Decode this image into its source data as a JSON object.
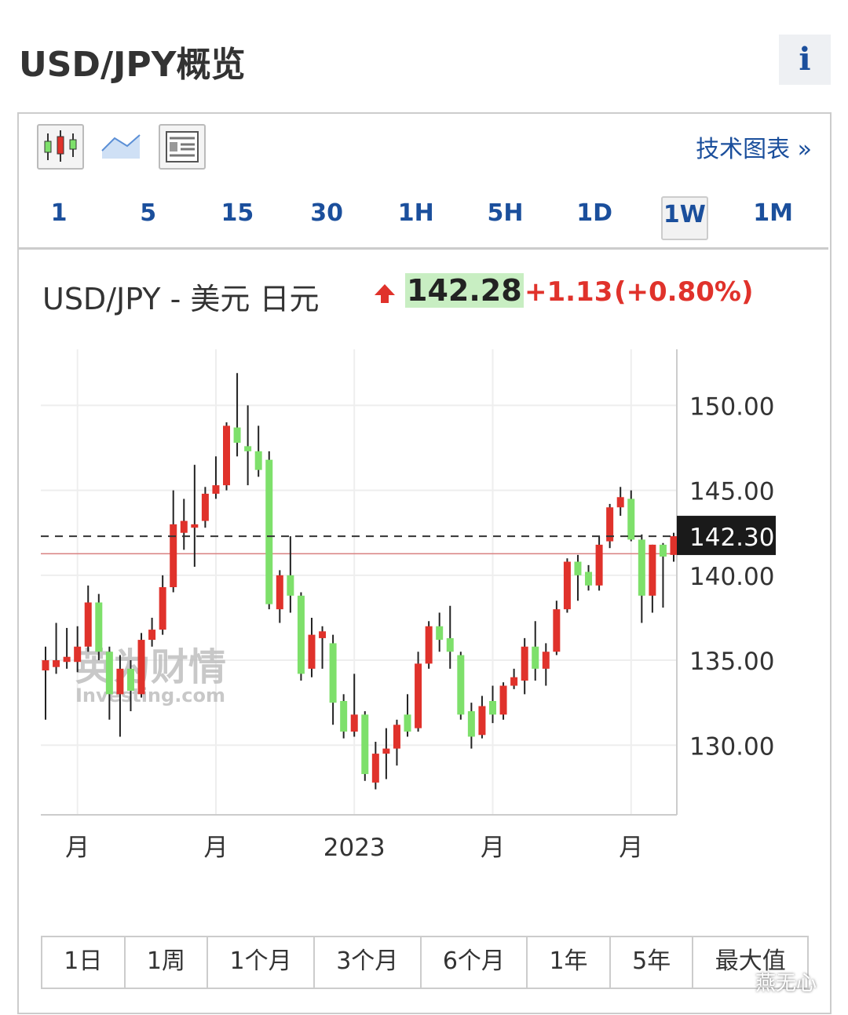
{
  "header": {
    "title": "USD/JPY概览",
    "info": "i"
  },
  "toolbar": {
    "link": "技术图表 »",
    "timeframes": [
      "1",
      "5",
      "15",
      "30",
      "1H",
      "5H",
      "1D",
      "1W",
      "1M"
    ],
    "active_timeframe": "1W"
  },
  "quote": {
    "name": "USD/JPY - 美元 日元",
    "price": "142.28",
    "change": "+1.13",
    "change_pct": "(+0.80%)"
  },
  "chart_data": {
    "type": "candlestick",
    "categories": [
      null,
      null,
      null,
      "月",
      null,
      null,
      null,
      null,
      null,
      null,
      null,
      null,
      null,
      null,
      null,
      null,
      "月",
      null,
      null,
      null,
      null,
      null,
      null,
      null,
      null,
      null,
      null,
      null,
      null,
      "2023",
      null,
      null,
      null,
      null,
      null,
      null,
      null,
      null,
      null,
      null,
      null,
      null,
      "月",
      null,
      null,
      null,
      null,
      null,
      null,
      null,
      null,
      null,
      null,
      null,
      null,
      "月",
      null,
      null,
      null,
      null
    ],
    "open": [
      134.4,
      134.6,
      134.9,
      134.9,
      135.8,
      138.4,
      135.5,
      133.0,
      134.5,
      133.0,
      136.2,
      136.8,
      139.3,
      142.5,
      142.8,
      143.2,
      144.8,
      145.3,
      148.7,
      147.6,
      147.3,
      146.8,
      138.0,
      140.0,
      138.8,
      134.5,
      136.3,
      136.0,
      132.6,
      130.8,
      131.8,
      127.8,
      129.5,
      129.8,
      131.8,
      131.0,
      134.8,
      137.0,
      136.3,
      135.3,
      132.0,
      130.6,
      132.6,
      131.8,
      133.5,
      133.8,
      135.8,
      134.5,
      135.5,
      138.0,
      140.8,
      140.2,
      139.4,
      142.0,
      144.0,
      144.5,
      142.1,
      138.8,
      141.8,
      141.2
    ],
    "high": [
      135.8,
      137.2,
      136.9,
      137.0,
      139.4,
      138.9,
      135.8,
      135.3,
      135.0,
      136.6,
      137.5,
      140.0,
      145.0,
      144.5,
      146.5,
      145.2,
      147.0,
      149.0,
      151.9,
      150.0,
      148.8,
      147.3,
      140.3,
      142.3,
      139.0,
      137.5,
      137.0,
      136.5,
      133.0,
      134.2,
      132.0,
      130.2,
      131.0,
      131.5,
      133.0,
      135.5,
      137.3,
      137.8,
      138.2,
      135.5,
      132.5,
      132.9,
      133.5,
      133.7,
      134.5,
      136.3,
      137.3,
      136.0,
      138.5,
      141.0,
      141.2,
      140.6,
      142.3,
      144.2,
      145.2,
      145.0,
      142.4,
      141.8,
      141.9,
      142.5
    ],
    "low": [
      131.5,
      134.2,
      134.5,
      134.3,
      135.5,
      135.0,
      131.5,
      130.5,
      132.0,
      132.8,
      135.8,
      136.5,
      139.0,
      141.5,
      140.5,
      142.8,
      144.5,
      145.0,
      147.0,
      145.3,
      145.8,
      138.0,
      137.2,
      137.8,
      133.8,
      134.0,
      134.5,
      131.2,
      130.4,
      130.5,
      127.9,
      127.4,
      128.0,
      128.8,
      130.5,
      130.8,
      134.5,
      135.5,
      134.5,
      131.5,
      129.8,
      130.4,
      131.3,
      131.5,
      133.3,
      133.0,
      133.8,
      133.5,
      135.3,
      137.8,
      138.5,
      139.1,
      139.1,
      141.6,
      143.5,
      142.0,
      137.2,
      137.8,
      138.1,
      140.8
    ],
    "close": [
      135.0,
      135.0,
      135.2,
      135.8,
      138.4,
      135.5,
      133.0,
      134.5,
      133.2,
      136.2,
      136.8,
      139.3,
      143.0,
      143.2,
      143.0,
      144.8,
      145.3,
      148.8,
      147.8,
      147.3,
      146.2,
      138.3,
      140.0,
      138.8,
      134.2,
      136.5,
      136.7,
      132.5,
      130.8,
      131.8,
      128.3,
      129.5,
      129.8,
      131.2,
      130.8,
      134.8,
      137.0,
      136.2,
      135.5,
      131.8,
      130.5,
      132.3,
      131.8,
      133.5,
      134.0,
      135.8,
      134.5,
      135.5,
      138.0,
      140.8,
      140.0,
      139.4,
      141.8,
      144.0,
      144.6,
      142.1,
      138.8,
      141.8,
      141.1,
      142.3
    ],
    "up_color": "#e0322b",
    "down_color": "#7ee06b",
    "ylim": [
      125.9,
      153.3
    ],
    "yticks": [
      {
        "value": 130,
        "label": "130.00"
      },
      {
        "value": 135,
        "label": "135.00"
      },
      {
        "value": 140,
        "label": "140.00"
      },
      {
        "value": 145,
        "label": "145.00"
      },
      {
        "value": 150,
        "label": "150.00"
      }
    ],
    "grid": true,
    "price_line": {
      "value": 142.3,
      "label": "142.30"
    },
    "reference_line": 141.27,
    "watermark": [
      "英为财情",
      "Investing.com"
    ]
  },
  "ranges": [
    "1日",
    "1周",
    "1个月",
    "3个月",
    "6个月",
    "1年",
    "5年",
    "最大值"
  ],
  "footer_watermark": "燕无心"
}
